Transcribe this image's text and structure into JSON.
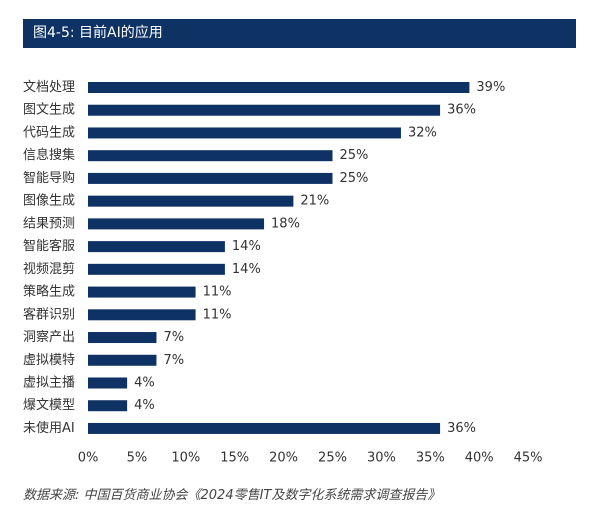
{
  "header": {
    "title": "图4-5: 目前AI的应用"
  },
  "source_note": "数据来源: 中国百货商业协会《2024零售IT及数字化系统需求调查报告》",
  "colors": {
    "bar": "#0f3265",
    "header_bg": "#0f3265",
    "text": "#333333"
  },
  "chart_data": {
    "type": "bar",
    "orientation": "horizontal",
    "title": "",
    "xlabel": "",
    "ylabel": "",
    "categories": [
      "文档处理",
      "图文生成",
      "代码生成",
      "信息搜集",
      "智能导购",
      "图像生成",
      "结果预测",
      "智能客服",
      "视频混剪",
      "策略生成",
      "客群识别",
      "洞察产出",
      "虚拟模特",
      "虚拟主播",
      "爆文模型",
      "未使用AI"
    ],
    "values": [
      39,
      36,
      32,
      25,
      25,
      21,
      18,
      14,
      14,
      11,
      11,
      7,
      7,
      4,
      4,
      36
    ],
    "value_labels": [
      "39%",
      "36%",
      "32%",
      "25%",
      "25%",
      "21%",
      "18%",
      "14%",
      "14%",
      "11%",
      "11%",
      "7%",
      "7%",
      "4%",
      "4%",
      "36%"
    ],
    "xlim": [
      0,
      45
    ],
    "xticks": [
      0,
      5,
      10,
      15,
      20,
      25,
      30,
      35,
      40,
      45
    ],
    "xtick_labels": [
      "0%",
      "5%",
      "10%",
      "15%",
      "20%",
      "25%",
      "30%",
      "35%",
      "40%",
      "45%"
    ],
    "grid": false,
    "legend": "none"
  }
}
